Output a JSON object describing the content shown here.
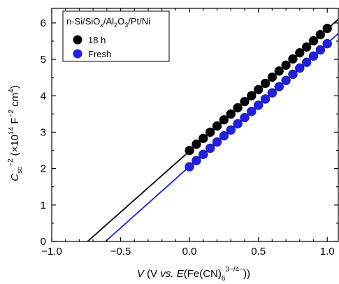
{
  "chart_data": {
    "type": "scatter",
    "x_ticks": [
      -1.0,
      -0.5,
      0.0,
      0.5,
      1.0
    ],
    "x_tick_labels": [
      "−1.0",
      "−0.5",
      "0.0",
      "0.5",
      "1.0"
    ],
    "y_ticks": [
      0,
      1,
      2,
      3,
      4,
      5,
      6
    ],
    "y_tick_labels": [
      "0",
      "1",
      "2",
      "3",
      "4",
      "5",
      "6"
    ],
    "xlim": [
      -1.0,
      1.08
    ],
    "ylim": [
      0,
      6.4
    ],
    "grid": false,
    "legend_placement": "top-left",
    "legend_title": "n-Si/SiO_x/Al_2O_3/Pt/Ni",
    "xlabel": {
      "prefix_italic": "V",
      "open": " (V ",
      "vs": "vs.",
      "E": "E",
      "species": "(Fe(CN)",
      "sub": "6",
      "sup": "3−/4−",
      "close": "))"
    },
    "ylabel": {
      "C": "C",
      "sub": "sc",
      "sup": "−2",
      "units_pre": " (×10",
      "units_sup1": "14",
      "units_mid": " F",
      "units_sup2": "−2",
      "units_cm": " cm",
      "units_sup3": "4",
      "units_close": ")"
    },
    "series": [
      {
        "name": "18 h",
        "color": "#000000",
        "x": [
          0.0,
          0.05,
          0.1,
          0.15,
          0.2,
          0.25,
          0.3,
          0.35,
          0.4,
          0.45,
          0.5,
          0.55,
          0.6,
          0.65,
          0.7,
          0.75,
          0.8,
          0.85,
          0.9,
          0.95,
          1.0
        ],
        "y": [
          2.5,
          2.67,
          2.83,
          3.0,
          3.17,
          3.34,
          3.5,
          3.67,
          3.84,
          4.0,
          4.17,
          4.34,
          4.51,
          4.68,
          4.84,
          5.01,
          5.18,
          5.34,
          5.51,
          5.68,
          5.85
        ],
        "fit_line": {
          "x": [
            -0.74,
            1.08
          ],
          "y": [
            0,
            6.1
          ]
        }
      },
      {
        "name": "Fresh",
        "color": "#1f1fe6",
        "x": [
          0.0,
          0.05,
          0.1,
          0.15,
          0.2,
          0.25,
          0.3,
          0.35,
          0.4,
          0.45,
          0.5,
          0.55,
          0.6,
          0.65,
          0.7,
          0.75,
          0.8,
          0.85,
          0.9,
          0.95,
          1.0
        ],
        "y": [
          2.05,
          2.22,
          2.39,
          2.56,
          2.73,
          2.9,
          3.06,
          3.23,
          3.4,
          3.57,
          3.74,
          3.91,
          4.08,
          4.25,
          4.42,
          4.59,
          4.76,
          4.92,
          5.09,
          5.26,
          5.43
        ],
        "fit_line": {
          "x": [
            -0.61,
            1.08
          ],
          "y": [
            0,
            5.71
          ]
        }
      }
    ]
  }
}
